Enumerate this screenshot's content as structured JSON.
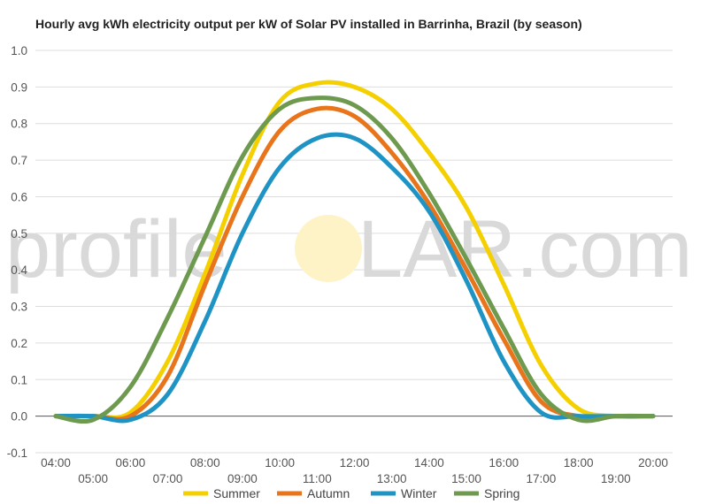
{
  "chart_data": {
    "type": "line",
    "title": "Hourly avg kWh electricity output per kW of Solar PV installed in Barrinha, Brazil (by season)",
    "xlabel": "",
    "ylabel": "",
    "ylim": [
      -0.1,
      1.0
    ],
    "yticks": [
      "1.0",
      "0.9",
      "0.8",
      "0.7",
      "0.6",
      "0.5",
      "0.4",
      "0.3",
      "0.2",
      "0.1",
      "0.0",
      "-0.1"
    ],
    "yticks_values": [
      1.0,
      0.9,
      0.8,
      0.7,
      0.6,
      0.5,
      0.4,
      0.3,
      0.2,
      0.1,
      0.0,
      -0.1
    ],
    "categories": [
      "04:00",
      "05:00",
      "06:00",
      "07:00",
      "08:00",
      "09:00",
      "10:00",
      "11:00",
      "12:00",
      "13:00",
      "14:00",
      "15:00",
      "16:00",
      "17:00",
      "18:00",
      "19:00",
      "20:00"
    ],
    "grid": true,
    "legend_position": "bottom",
    "series": [
      {
        "name": "Summer",
        "color": "#f5d000",
        "values": [
          0.0,
          0.0,
          0.01,
          0.15,
          0.39,
          0.66,
          0.86,
          0.91,
          0.9,
          0.84,
          0.72,
          0.57,
          0.36,
          0.14,
          0.02,
          0.0,
          0.0
        ]
      },
      {
        "name": "Autumn",
        "color": "#e8741c",
        "values": [
          0.0,
          0.0,
          0.0,
          0.11,
          0.36,
          0.6,
          0.78,
          0.84,
          0.82,
          0.72,
          0.58,
          0.4,
          0.21,
          0.04,
          0.0,
          0.0,
          0.0
        ]
      },
      {
        "name": "Winter",
        "color": "#1f94c4",
        "values": [
          0.0,
          0.0,
          -0.01,
          0.06,
          0.26,
          0.5,
          0.68,
          0.76,
          0.76,
          0.68,
          0.56,
          0.37,
          0.15,
          0.01,
          0.0,
          0.0,
          0.0
        ]
      },
      {
        "name": "Spring",
        "color": "#6e9a4f",
        "values": [
          0.0,
          -0.01,
          0.08,
          0.27,
          0.49,
          0.71,
          0.84,
          0.87,
          0.85,
          0.76,
          0.61,
          0.43,
          0.24,
          0.06,
          -0.01,
          0.0,
          0.0
        ]
      }
    ]
  },
  "watermark": {
    "text_left": "profile",
    "text_right": "LAR.com"
  }
}
